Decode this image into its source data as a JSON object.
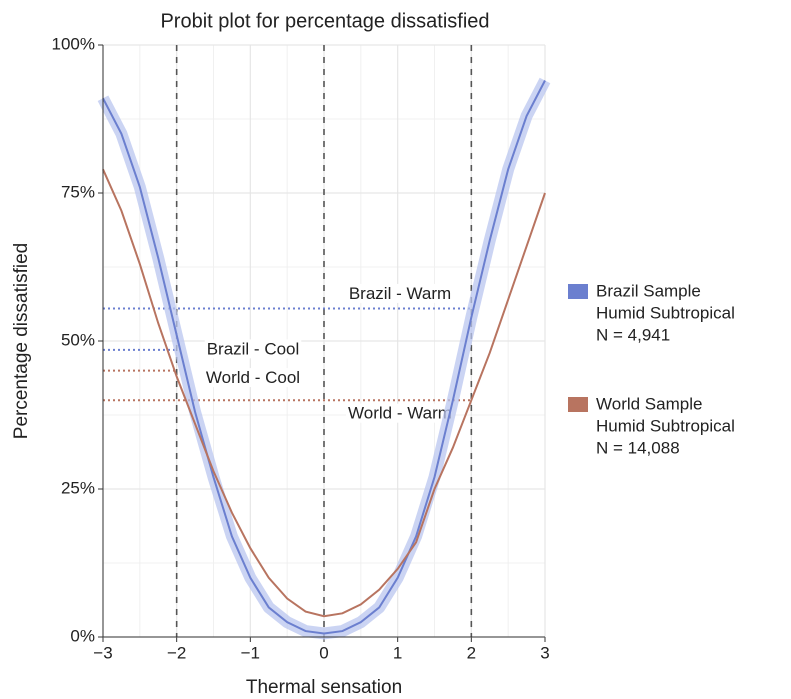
{
  "chart_data": {
    "type": "line",
    "title": "Probit plot for percentage dissatisfied",
    "x_label": "Thermal sensation",
    "y_label": "Percentage dissatisfied",
    "x": [
      -3,
      -2.75,
      -2.5,
      -2.25,
      -2,
      -1.75,
      -1.5,
      -1.25,
      -1,
      -0.75,
      -0.5,
      -0.25,
      0,
      0.25,
      0.5,
      0.75,
      1,
      1.25,
      1.5,
      1.75,
      2,
      2.25,
      2.5,
      2.75,
      3
    ],
    "series": [
      {
        "name": "Brazil Sample",
        "legend_lines": [
          "Humid Subtropical",
          "N = 4,941"
        ],
        "color": "#6b7fcf",
        "band_color": "#b9c5ef",
        "values": [
          91,
          85,
          76,
          64,
          51,
          38,
          27,
          17,
          10,
          5,
          2.5,
          1,
          0.6,
          1,
          2.5,
          5,
          10,
          17,
          27,
          40,
          54,
          67,
          79,
          88,
          94
        ]
      },
      {
        "name": "World Sample",
        "legend_lines": [
          "Humid Subtropical",
          "N = 14,088"
        ],
        "color": "#b87460",
        "values": [
          79,
          72,
          63,
          53,
          44,
          36,
          28,
          21,
          15,
          10,
          6.5,
          4.3,
          3.5,
          4,
          5.5,
          8,
          11.5,
          16,
          25,
          32,
          40,
          48,
          57,
          66,
          75
        ]
      }
    ],
    "reference_lines": [
      {
        "label": "Brazil - Warm",
        "value": 55.5,
        "x_end": 2,
        "color": "#6b7fcf"
      },
      {
        "label": "Brazil - Cool",
        "value": 48.5,
        "x_end": -2,
        "color": "#6b7fcf"
      },
      {
        "label": "World - Cool",
        "value": 45,
        "x_end": -2,
        "color": "#b87460"
      },
      {
        "label": "World - Warm",
        "value": 40,
        "x_end": 2,
        "color": "#b87460"
      }
    ],
    "vlines": [
      -2,
      0,
      2
    ],
    "xlim": [
      -3,
      3
    ],
    "ylim": [
      0,
      100
    ],
    "xticks": [
      {
        "value": -3,
        "label": "−3"
      },
      {
        "value": -2,
        "label": "−2"
      },
      {
        "value": -1,
        "label": "−1"
      },
      0,
      1,
      2,
      3
    ],
    "yticks": [
      {
        "value": 0,
        "label": "0%"
      },
      {
        "value": 25,
        "label": "25%"
      },
      {
        "value": 50,
        "label": "50%"
      },
      {
        "value": 75,
        "label": "75%"
      },
      {
        "value": 100,
        "label": "100%"
      }
    ],
    "grid": true
  }
}
